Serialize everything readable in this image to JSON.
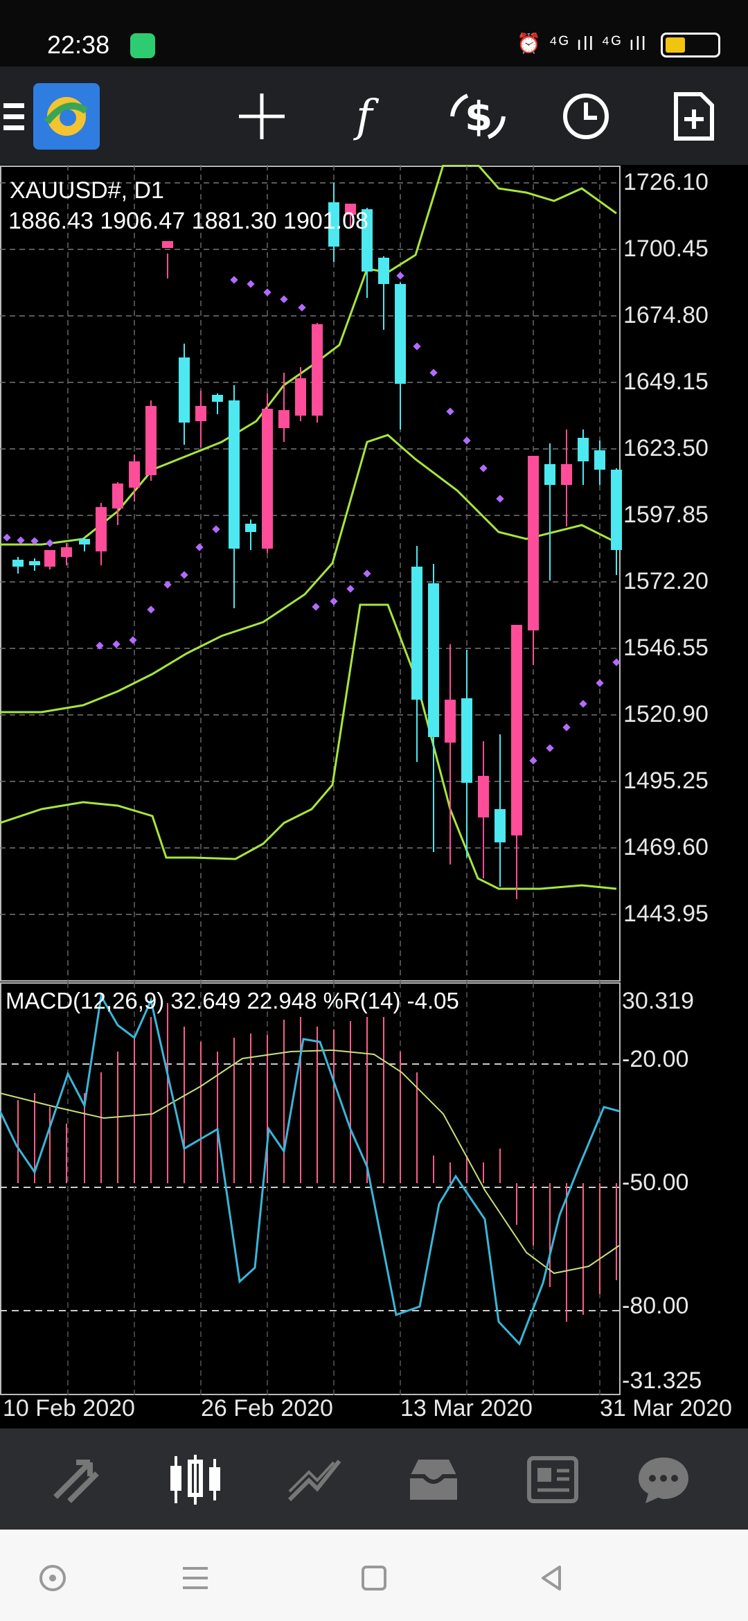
{
  "status_bar": {
    "time": "22:38",
    "signal_text": "⁴ᴳ ıll ⁴ᴳ ıll",
    "icons": [
      "alarm-icon",
      "signal-4g-icon",
      "battery-icon"
    ]
  },
  "toolbar": {
    "icons": [
      "menu-icon",
      "mt4-logo-icon",
      "crosshair-icon",
      "indicators-icon",
      "trade-icon",
      "timeframe-icon",
      "new-order-icon"
    ]
  },
  "chart": {
    "symbol": "XAUUSD#, D1",
    "ohlc": "1886.43 1906.47 1881.30 1901.08",
    "price_ticks": [
      "1726.10",
      "1700.45",
      "1674.80",
      "1649.15",
      "1623.50",
      "1597.85",
      "1572.20",
      "1546.55",
      "1520.90",
      "1495.25",
      "1469.60",
      "1443.95"
    ]
  },
  "macd": {
    "label": "MACD(12,26,9) 32.649 22.948 %R(14) -4.05",
    "ticks": [
      "30.319",
      "-20.00",
      "-50.00",
      "-80.00",
      "-31.325"
    ]
  },
  "x_axis": {
    "labels": [
      "10 Feb 2020",
      "26 Feb 2020",
      "13 Mar 2020",
      "31 Mar 2020"
    ]
  },
  "colors": {
    "bull": "#ff4d9a",
    "bear": "#4de8f0",
    "band": "#a8e63a",
    "sar": "#b36bff",
    "macd_line": "#3ab6d8",
    "signal_line": "#c8e07a",
    "histogram": "#ff5c8a"
  },
  "bottom_nav": {
    "items": [
      "quotes-icon",
      "chart-icon",
      "trade-icon",
      "history-icon",
      "news-icon",
      "chat-icon"
    ]
  },
  "system_nav": {
    "items": [
      "assistant-icon",
      "menu-icon",
      "home-icon",
      "back-icon"
    ]
  }
}
